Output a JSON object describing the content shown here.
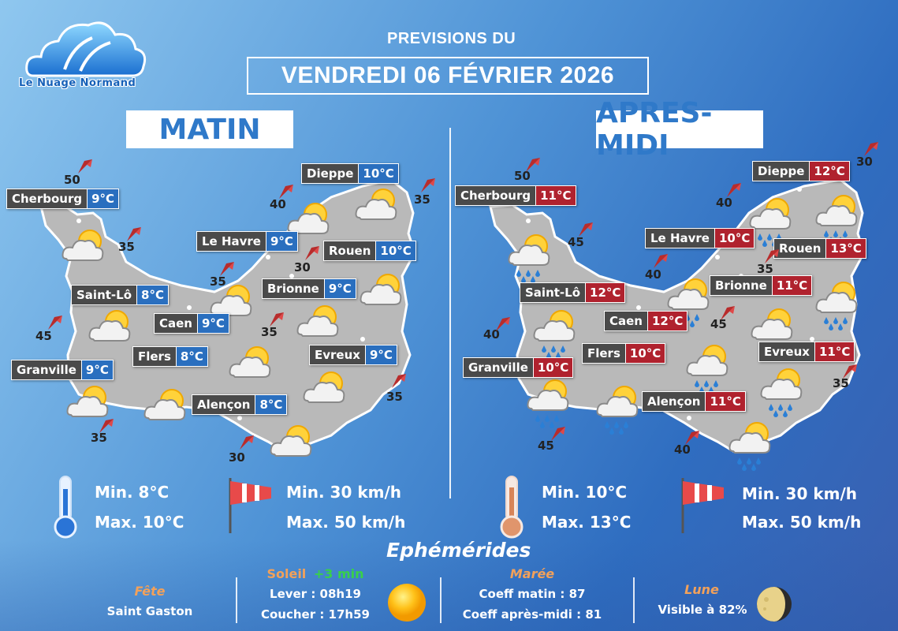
{
  "brand": {
    "name": "Le Nuage Normand"
  },
  "header": {
    "pre": "PREVISIONS DU",
    "date": "VENDREDI 06 FÉVRIER 2026"
  },
  "colors": {
    "morning_temp": "#2a6fbf",
    "afternoon_temp": "#b0222e",
    "map_fill": "#b9b9b9"
  },
  "morning": {
    "title": "MATIN",
    "cities": [
      {
        "name": "Cherbourg",
        "temp": "9°C"
      },
      {
        "name": "Dieppe",
        "temp": "10°C"
      },
      {
        "name": "Le Havre",
        "temp": "9°C"
      },
      {
        "name": "Rouen",
        "temp": "10°C"
      },
      {
        "name": "Saint-Lô",
        "temp": "8°C"
      },
      {
        "name": "Brionne",
        "temp": "9°C"
      },
      {
        "name": "Caen",
        "temp": "9°C"
      },
      {
        "name": "Flers",
        "temp": "8°C"
      },
      {
        "name": "Evreux",
        "temp": "9°C"
      },
      {
        "name": "Granville",
        "temp": "9°C"
      },
      {
        "name": "Alençon",
        "temp": "8°C"
      }
    ],
    "winds": [
      "50",
      "35",
      "40",
      "35",
      "30",
      "35",
      "45",
      "35",
      "35",
      "35",
      "30"
    ],
    "icons": [
      "partly-cloudy-icon"
    ],
    "stats": {
      "tmin": "Min. 8°C",
      "tmax": "Max. 10°C",
      "wmin": "Min. 30 km/h",
      "wmax": "Max. 50 km/h"
    }
  },
  "afternoon": {
    "title": "APRES-MIDI",
    "cities": [
      {
        "name": "Cherbourg",
        "temp": "11°C"
      },
      {
        "name": "Dieppe",
        "temp": "12°C"
      },
      {
        "name": "Le Havre",
        "temp": "10°C"
      },
      {
        "name": "Rouen",
        "temp": "13°C"
      },
      {
        "name": "Saint-Lô",
        "temp": "12°C"
      },
      {
        "name": "Brionne",
        "temp": "11°C"
      },
      {
        "name": "Caen",
        "temp": "12°C"
      },
      {
        "name": "Flers",
        "temp": "10°C"
      },
      {
        "name": "Evreux",
        "temp": "11°C"
      },
      {
        "name": "Granville",
        "temp": "10°C"
      },
      {
        "name": "Alençon",
        "temp": "11°C"
      }
    ],
    "winds": [
      "50",
      "30",
      "40",
      "45",
      "40",
      "35",
      "40",
      "45",
      "35",
      "45",
      "40"
    ],
    "icons": [
      "sun-cloud-rain-icon"
    ],
    "stats": {
      "tmin": "Min. 10°C",
      "tmax": "Max. 13°C",
      "wmin": "Min. 30 km/h",
      "wmax": "Max. 50 km/h"
    }
  },
  "ephemerides": {
    "title": "Ephémérides",
    "fete": {
      "label": "Fête",
      "value": "Saint Gaston"
    },
    "soleil": {
      "label": "Soleil",
      "delta": "+3 min",
      "lever": "Lever : 08h19",
      "coucher": "Coucher : 17h59"
    },
    "maree": {
      "label": "Marée",
      "matin": "Coeff matin : 87",
      "apres": "Coeff après-midi : 81"
    },
    "lune": {
      "label": "Lune",
      "value": "Visible à 82%"
    }
  }
}
